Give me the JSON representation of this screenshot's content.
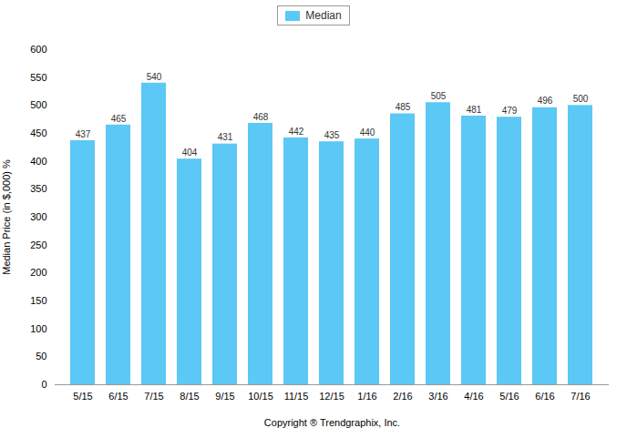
{
  "chart_data": {
    "type": "bar",
    "categories": [
      "5/15",
      "6/15",
      "7/15",
      "8/15",
      "9/15",
      "10/15",
      "11/15",
      "12/15",
      "1/16",
      "2/16",
      "3/16",
      "4/16",
      "5/16",
      "6/16",
      "7/16"
    ],
    "series": [
      {
        "name": "Median",
        "color": "#5BC8F5",
        "values": [
          437,
          465,
          540,
          404,
          431,
          468,
          442,
          435,
          440,
          485,
          505,
          481,
          479,
          496,
          500
        ]
      }
    ],
    "xlabel": "Copyright ® Trendgraphix, Inc.",
    "ylabel": "Median Price (in $,000) %",
    "ylim": [
      0,
      600
    ],
    "yticks": [
      0,
      50,
      100,
      150,
      200,
      250,
      300,
      350,
      400,
      450,
      500,
      550,
      600
    ],
    "grid": false,
    "legend": "top",
    "data_labels": true
  }
}
